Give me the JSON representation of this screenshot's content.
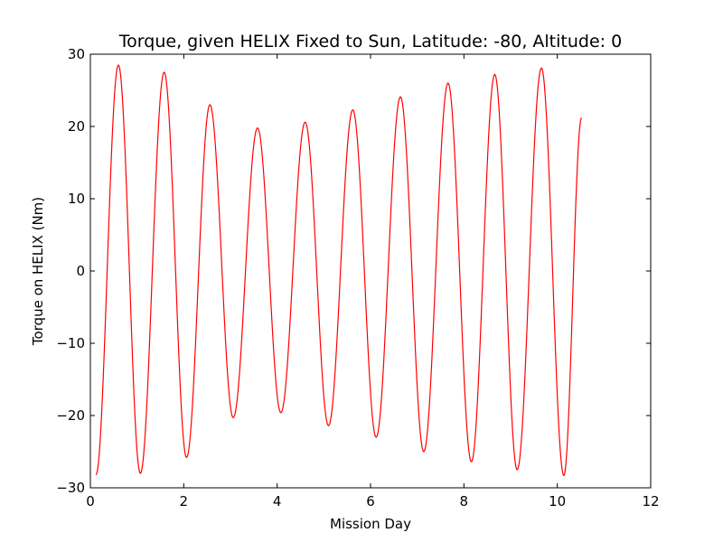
{
  "chart_data": {
    "type": "line",
    "title": "Torque, given HELIX Fixed to Sun, Latitude: -80, Altitude: 0",
    "xlabel": "Mission Day",
    "ylabel": "Torque on HELIX (Nm)",
    "xlim": [
      0,
      12
    ],
    "ylim": [
      -30,
      30
    ],
    "xticks": [
      0,
      2,
      4,
      6,
      8,
      10,
      12
    ],
    "yticks": [
      30,
      20,
      10,
      0,
      -10,
      -20,
      -30
    ],
    "ytick_labels": [
      "30",
      "20",
      "10",
      "0",
      "−10",
      "−20",
      "−30"
    ],
    "grid": false,
    "legend": "none",
    "series": [
      {
        "color": "#ff0000",
        "extrema": [
          {
            "x": 0.12,
            "y": -28.2
          },
          {
            "x": 0.6,
            "y": 28.5
          },
          {
            "x": 1.07,
            "y": -28.0
          },
          {
            "x": 1.58,
            "y": 27.5
          },
          {
            "x": 2.06,
            "y": -25.8
          },
          {
            "x": 2.56,
            "y": 23.0
          },
          {
            "x": 3.06,
            "y": -20.3
          },
          {
            "x": 3.58,
            "y": 19.8
          },
          {
            "x": 4.08,
            "y": -19.6
          },
          {
            "x": 4.6,
            "y": 20.6
          },
          {
            "x": 5.1,
            "y": -21.4
          },
          {
            "x": 5.62,
            "y": 22.3
          },
          {
            "x": 6.12,
            "y": -23.0
          },
          {
            "x": 6.64,
            "y": 24.1
          },
          {
            "x": 7.14,
            "y": -25.0
          },
          {
            "x": 7.66,
            "y": 26.0
          },
          {
            "x": 8.16,
            "y": -26.4
          },
          {
            "x": 8.66,
            "y": 27.2
          },
          {
            "x": 9.14,
            "y": -27.5
          },
          {
            "x": 9.66,
            "y": 28.1
          },
          {
            "x": 10.14,
            "y": -28.3
          },
          {
            "x": 10.52,
            "y": 21.2
          }
        ]
      }
    ]
  }
}
